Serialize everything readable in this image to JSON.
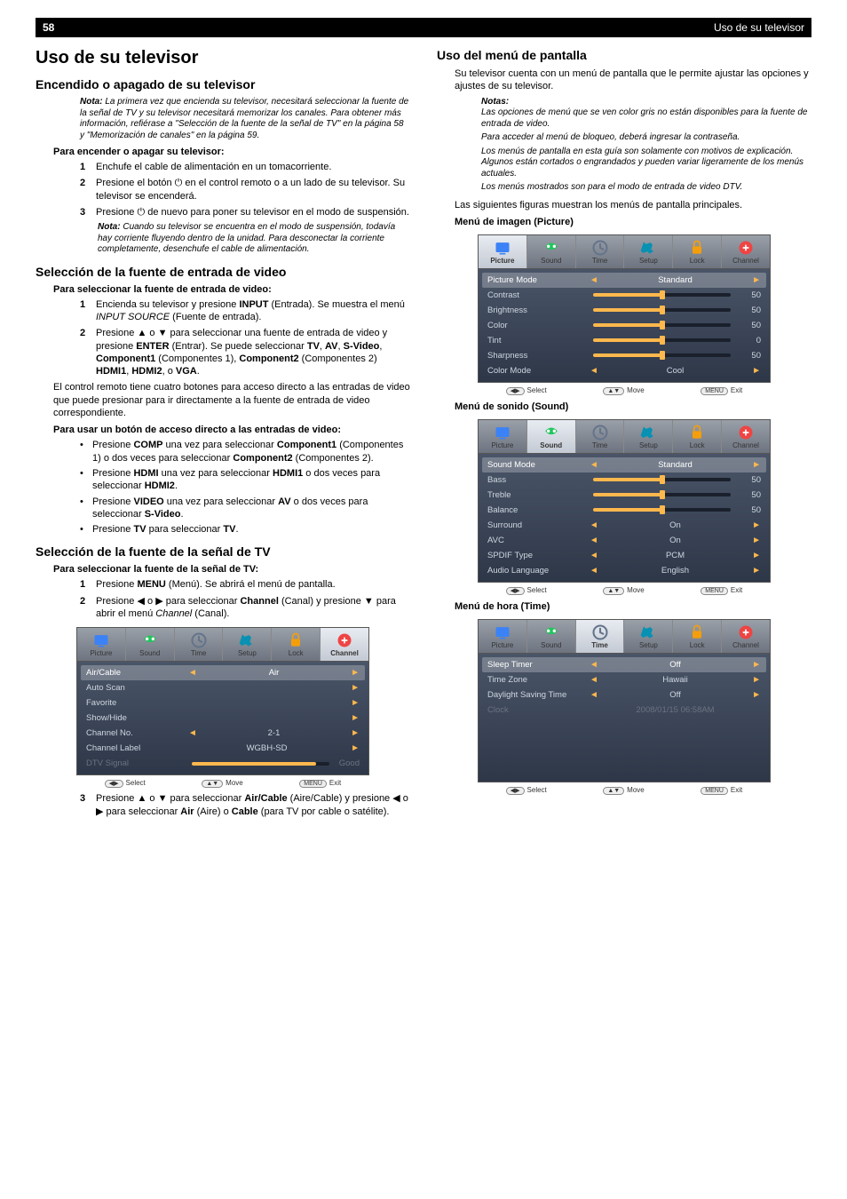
{
  "header": {
    "page": "58",
    "title": "Uso de su televisor"
  },
  "left": {
    "h1": "Uso de su televisor",
    "h2a": "Encendido o apagado de su televisor",
    "note1_label": "Nota:",
    "note1": " La primera vez que encienda su televisor, necesitará seleccionar la fuente de la señal de TV y su televisor necesitará memorizar los canales. Para obtener más información, refiérase a \"Selección de la fuente de la señal de TV\" en la página 58 y \"Memorización de canales\" en la página 59.",
    "proc1_title": "Para encender o apagar su televisor:",
    "proc1": [
      "Enchufe el cable de alimentación en un tomacorriente.",
      "Presione el botón ⏻ en el control remoto o a un lado de su televisor. Su televisor se encenderá.",
      "Presione ⏻ de nuevo para poner su televisor en el modo de suspensión."
    ],
    "note2_label": "Nota:",
    "note2": " Cuando su televisor se encuentra en el modo de suspensión, todavía hay corriente fluyendo dentro de la unidad. Para desconectar la corriente completamente, desenchufe el cable de alimentación.",
    "h2b": "Selección de la fuente de entrada de video",
    "proc2_title": "Para seleccionar la fuente de entrada de video:",
    "proc2_1a": "Encienda su televisor y presione ",
    "proc2_1b": "INPUT",
    "proc2_1c": " (Entrada). Se muestra el menú ",
    "proc2_1d": "INPUT SOURCE",
    "proc2_1e": " (Fuente de entrada).",
    "proc2_2": "Presione ▲ o ▼ para seleccionar una fuente de entrada de video y presione ENTER (Entrar). Se puede seleccionar TV, AV, S-Video, Component1 (Componentes 1), Component2 (Componentes 2) HDMI1, HDMI2, o VGA.",
    "para1": "El control remoto tiene cuatro botones para acceso directo a las entradas de video que puede presionar para ir directamente a la fuente de entrada de video correspondiente.",
    "proc3_title": "Para usar un botón de acceso directo a las entradas de video:",
    "bullets": [
      "Presione COMP una vez para seleccionar Component1 (Componentes 1) o dos veces para seleccionar Component2 (Componentes 2).",
      "Presione HDMI una vez para seleccionar HDMI1 o dos veces para seleccionar HDMI2.",
      "Presione VIDEO una vez para seleccionar AV o dos veces para seleccionar S-Video.",
      "Presione TV para seleccionar TV."
    ],
    "h2c": "Selección de la fuente de la señal de TV",
    "proc4_title": "Para seleccionar la fuente de la señal de TV:",
    "proc4": [
      "Presione MENU (Menú). Se abrirá el menú de pantalla.",
      "Presione ◀ o ▶ para seleccionar Channel (Canal) y presione ▼ para abrir el menú Channel (Canal)."
    ],
    "proc4_3": "Presione ▲ o ▼ para seleccionar Air/Cable (Aire/Cable) y presione ◀ o ▶ para seleccionar Air (Aire) o Cable (para TV por cable o satélite).",
    "channel_menu": {
      "tabs": [
        "Picture",
        "Sound",
        "Time",
        "Setup",
        "Lock",
        "Channel"
      ],
      "active": 5,
      "rows": [
        {
          "label": "Air/Cable",
          "val": "Air",
          "arrows": true,
          "sel": true
        },
        {
          "label": "Auto Scan",
          "val": "",
          "arrows": "r"
        },
        {
          "label": "Favorite",
          "val": "",
          "arrows": "r"
        },
        {
          "label": "Show/Hide",
          "val": "",
          "arrows": "r"
        },
        {
          "label": "Channel No.",
          "val": "2-1",
          "arrows": true
        },
        {
          "label": "Channel Label",
          "val": "WGBH-SD",
          "arrows": "r"
        },
        {
          "label": "DTV Signal",
          "val": "Good",
          "slider": 90,
          "grey": true
        }
      ]
    }
  },
  "right": {
    "h2a": "Uso del menú de pantalla",
    "intro": "Su televisor cuenta con un menú de pantalla que le permite ajustar las opciones y ajustes de su televisor.",
    "notes_label": "Notas:",
    "notes": [
      "Las opciones de menú que se ven color gris no están disponibles para la fuente de entrada de video.",
      "Para acceder al menú de bloqueo, deberá ingresar la contraseña.",
      "Los menús de pantalla en esta guía son solamente con motivos de explicación. Algunos están cortados o engrandados y pueden variar ligeramente de los menús actuales.",
      "Los menús mostrados son para el modo de entrada de video DTV."
    ],
    "para2": "Las siguientes figuras muestran los menús de pantalla principales.",
    "h3a": "Menú de imagen (Picture)",
    "picture_menu": {
      "active": 0,
      "rows": [
        {
          "label": "Picture Mode",
          "val": "Standard",
          "arrows": true,
          "sel": true
        },
        {
          "label": "Contrast",
          "slider": 50,
          "num": "50"
        },
        {
          "label": "Brightness",
          "slider": 50,
          "num": "50"
        },
        {
          "label": "Color",
          "slider": 50,
          "num": "50"
        },
        {
          "label": "Tint",
          "slider": 50,
          "num": "0"
        },
        {
          "label": "Sharpness",
          "slider": 50,
          "num": "50"
        },
        {
          "label": "Color Mode",
          "val": "Cool",
          "arrows": true
        }
      ]
    },
    "h3b": "Menú de sonido (Sound)",
    "sound_menu": {
      "active": 1,
      "rows": [
        {
          "label": "Sound Mode",
          "val": "Standard",
          "arrows": true,
          "sel": true
        },
        {
          "label": "Bass",
          "slider": 50,
          "num": "50"
        },
        {
          "label": "Treble",
          "slider": 50,
          "num": "50"
        },
        {
          "label": "Balance",
          "slider": 50,
          "num": "50"
        },
        {
          "label": "Surround",
          "val": "On",
          "arrows": true
        },
        {
          "label": "AVC",
          "val": "On",
          "arrows": true
        },
        {
          "label": "SPDIF Type",
          "val": "PCM",
          "arrows": true
        },
        {
          "label": "Audio Language",
          "val": "English",
          "arrows": true
        }
      ]
    },
    "h3c": "Menú de hora (Time)",
    "time_menu": {
      "active": 2,
      "rows": [
        {
          "label": "Sleep Timer",
          "val": "Off",
          "arrows": true,
          "sel": true
        },
        {
          "label": "Time Zone",
          "val": "Hawaii",
          "arrows": true
        },
        {
          "label": "Daylight Saving Time",
          "val": "Off",
          "arrows": true
        },
        {
          "label": "Clock",
          "val": "2008/01/15  06:58AM",
          "grey": true
        }
      ],
      "pad": 4
    }
  },
  "footer_keys": {
    "select": "Select",
    "move": "Move",
    "exit": "Exit",
    "menu": "MENU"
  },
  "tabs": [
    "Picture",
    "Sound",
    "Time",
    "Setup",
    "Lock",
    "Channel"
  ],
  "icon_colors": [
    "#3b82f6",
    "#22c55e",
    "#64748b",
    "#0891b2",
    "#f59e0b",
    "#ef4444"
  ]
}
